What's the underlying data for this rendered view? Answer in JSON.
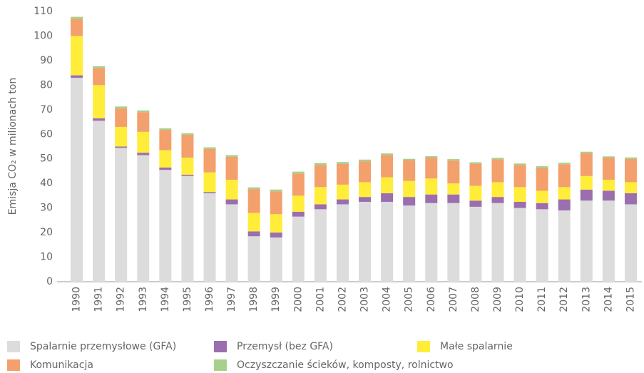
{
  "chart_data": {
    "type": "stacked_bar",
    "y_axis_label": "Emisja CO₂ w milionach ton",
    "categories": [
      "1990",
      "1991",
      "1992",
      "1993",
      "1994",
      "1995",
      "1996",
      "1997",
      "1998",
      "1999",
      "2000",
      "2001",
      "2002",
      "2003",
      "2004",
      "2005",
      "2006",
      "2007",
      "2008",
      "2009",
      "2010",
      "2011",
      "2012",
      "2013",
      "2014",
      "2015"
    ],
    "series": [
      {
        "name": "Spalarnie przemysłowe (GFA)",
        "color": "#dcdcdc",
        "values": [
          83,
          65.5,
          54.5,
          51.5,
          45.5,
          43,
          36,
          31.5,
          18.5,
          18,
          26.5,
          29.5,
          31.5,
          32.5,
          32.5,
          31,
          32,
          32,
          30.5,
          32,
          30,
          29.5,
          29,
          33,
          33,
          31.5
        ]
      },
      {
        "name": "Przemysł (bez GFA)",
        "color": "#9b6fae",
        "values": [
          1,
          1,
          0.5,
          1,
          1,
          0.5,
          0.5,
          2,
          2,
          2,
          2,
          2,
          2,
          2,
          3.5,
          3.5,
          3.5,
          3.5,
          2.5,
          2.5,
          2.5,
          2.5,
          4.5,
          4.5,
          4,
          4.5
        ]
      },
      {
        "name": "Małe spalarnie",
        "color": "#ffed3a",
        "values": [
          16,
          13.5,
          8,
          8.5,
          7,
          7,
          8,
          8,
          7.5,
          7.5,
          6.5,
          7,
          6,
          6,
          6.5,
          6.5,
          6.5,
          4.5,
          6,
          6,
          6,
          5,
          5,
          5.5,
          4.5,
          4.5
        ]
      },
      {
        "name": "Komunikacja",
        "color": "#f3a06d",
        "values": [
          7,
          7,
          7.5,
          8,
          8.3,
          9.3,
          9.5,
          9.3,
          9.7,
          9.3,
          9,
          9,
          8.5,
          8.5,
          9,
          8.5,
          8.5,
          9.3,
          9,
          9.3,
          9,
          9.3,
          9.3,
          9.3,
          9,
          9.5
        ]
      },
      {
        "name": "Oczyszczanie ścieków, komposty, rolnictwo",
        "color": "#a6d18b",
        "values": [
          0.8,
          0.7,
          0.8,
          0.7,
          0.6,
          0.6,
          0.7,
          0.7,
          0.7,
          0.7,
          0.8,
          0.8,
          0.7,
          0.7,
          0.7,
          0.5,
          0.6,
          0.6,
          0.6,
          0.6,
          0.6,
          0.7,
          0.6,
          0.6,
          0.5,
          0.6
        ]
      }
    ],
    "ylim": [
      0,
      110
    ],
    "yticks": [
      0,
      10,
      20,
      30,
      40,
      50,
      60,
      70,
      80,
      90,
      100,
      110
    ],
    "grid": false
  }
}
